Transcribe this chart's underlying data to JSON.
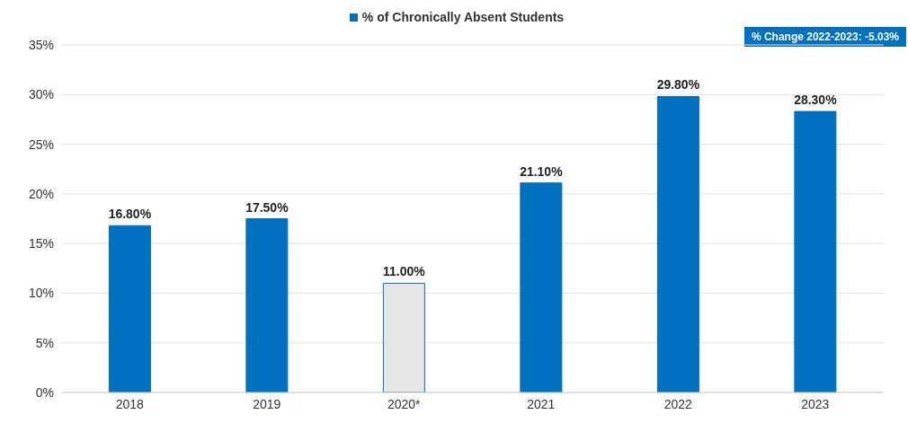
{
  "chart_data": {
    "type": "bar",
    "categories": [
      "2018",
      "2019",
      "2020*",
      "2021",
      "2022",
      "2023"
    ],
    "series": [
      {
        "name": "% of Chronically Absent Students",
        "color": "#0070c0",
        "colors": [
          "#0070c0",
          "#0070c0",
          "#e6e6e6",
          "#0070c0",
          "#0070c0",
          "#0070c0"
        ],
        "values": [
          16.8,
          17.5,
          11.0,
          21.1,
          29.8,
          28.3
        ],
        "value_labels": [
          "16.80%",
          "17.50%",
          "11.00%",
          "21.10%",
          "29.80%",
          "28.30%"
        ]
      }
    ],
    "ylim": [
      0,
      35
    ],
    "yticks": [
      {
        "value": 0,
        "label": "0%"
      },
      {
        "value": 5,
        "label": "5%"
      },
      {
        "value": 10,
        "label": "10%"
      },
      {
        "value": 15,
        "label": "15%"
      },
      {
        "value": 20,
        "label": "20%"
      },
      {
        "value": 25,
        "label": "25%"
      },
      {
        "value": 30,
        "label": "30%"
      },
      {
        "value": 35,
        "label": "35%"
      }
    ],
    "grid": "y",
    "legend": "top",
    "annotations": [
      "% Change 2022-2023: -5.03%"
    ]
  }
}
